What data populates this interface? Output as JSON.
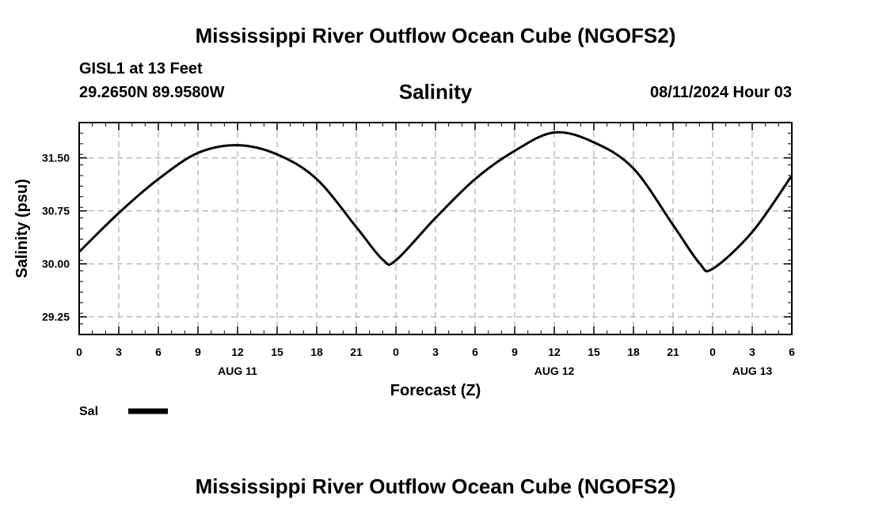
{
  "page": {
    "title": "Mississippi River Outflow Ocean Cube (NGOFS2)",
    "footer_title": "Mississippi River Outflow Ocean Cube (NGOFS2)",
    "station": "GISL1 at 13 Feet",
    "coordinates": "29.2650N  89.9580W",
    "subtitle": "Salinity",
    "datetime": "08/11/2024 Hour 03"
  },
  "chart_data": {
    "type": "line",
    "title": "Salinity",
    "xlabel": "Forecast (Z)",
    "ylabel": "Salinity (psu)",
    "xlim": [
      0,
      54
    ],
    "ylim": [
      29.0,
      32.0
    ],
    "x_tick_labels": [
      "0",
      "3",
      "6",
      "9",
      "12",
      "15",
      "18",
      "21",
      "0",
      "3",
      "6",
      "9",
      "12",
      "15",
      "18",
      "21",
      "0",
      "3",
      "6"
    ],
    "x_date_labels": [
      {
        "label": "AUG 11",
        "hour": 12
      },
      {
        "label": "AUG 12",
        "hour": 36
      },
      {
        "label": "AUG 13",
        "hour": 51
      }
    ],
    "y_ticks": [
      29.25,
      30.0,
      30.75,
      31.5
    ],
    "y_tick_labels": [
      "29.25",
      "30.00",
      "30.75",
      "31.50"
    ],
    "grid": true,
    "legend_position": "bottom-left",
    "series": [
      {
        "name": "Sal",
        "color": "#000000",
        "x": [
          0,
          3,
          6,
          9,
          12,
          15,
          18,
          21,
          23,
          24,
          27,
          30,
          33,
          36,
          39,
          42,
          45,
          47,
          48,
          51,
          54
        ],
        "y": [
          30.17,
          30.72,
          31.2,
          31.57,
          31.68,
          31.55,
          31.2,
          30.52,
          30.06,
          30.05,
          30.65,
          31.2,
          31.6,
          31.86,
          31.72,
          31.35,
          30.55,
          30.01,
          29.93,
          30.45,
          31.25
        ]
      }
    ]
  }
}
